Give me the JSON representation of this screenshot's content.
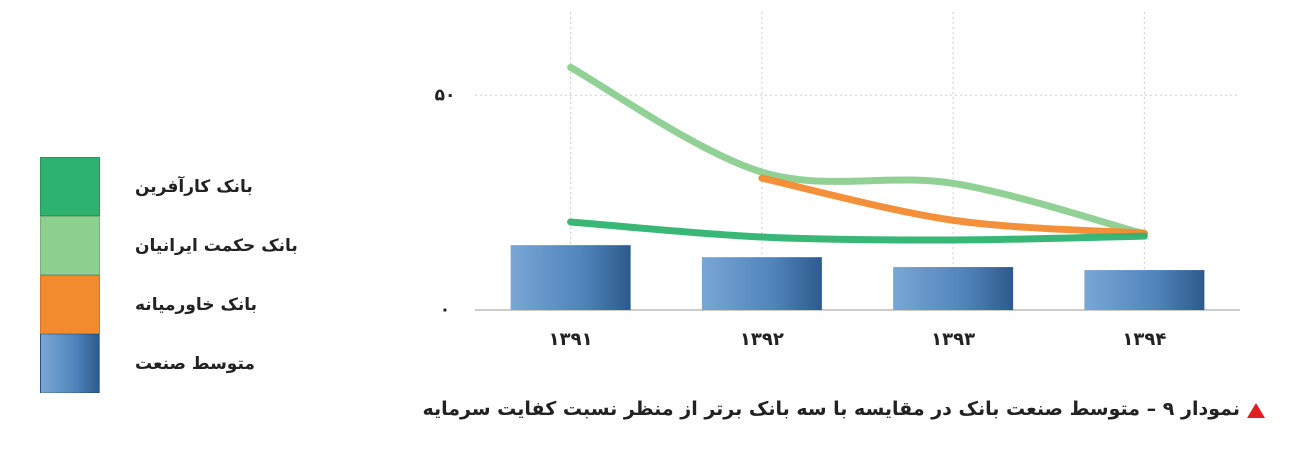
{
  "chart_data": {
    "type": "combo",
    "title": "نمودار ۹ – متوسط صنعت بانک در مقایسه با سه بانک برتر از منظر نسبت کفایت سرمایه",
    "categories": [
      "۱۳۹۱",
      "۱۳۹۲",
      "۱۳۹۳",
      "۱۳۹۴"
    ],
    "ylim": [
      0,
      68
    ],
    "yticks": [
      {
        "value": 0,
        "label": "۰"
      },
      {
        "value": 50,
        "label": "۵۰"
      }
    ],
    "grid": true,
    "legend": "left",
    "series": [
      {
        "name": "بانک کارآفرین",
        "type": "line",
        "color": "#2db36f",
        "values": [
          20.5,
          17,
          16.3,
          17.2
        ]
      },
      {
        "name": "بانک حکمت ایرانیان",
        "type": "line",
        "color": "#8ccf8f",
        "values": [
          56.5,
          32.1,
          29.5,
          17.7
        ]
      },
      {
        "name": "بانک خاورمیانه",
        "type": "line",
        "color": "#f28a2e",
        "values": [
          null,
          30.7,
          20.9,
          17.9
        ]
      },
      {
        "name": "متوسط صنعت",
        "type": "bar",
        "color": "#4f84bb",
        "values": [
          15.1,
          12.3,
          10,
          9.3
        ]
      }
    ]
  }
}
